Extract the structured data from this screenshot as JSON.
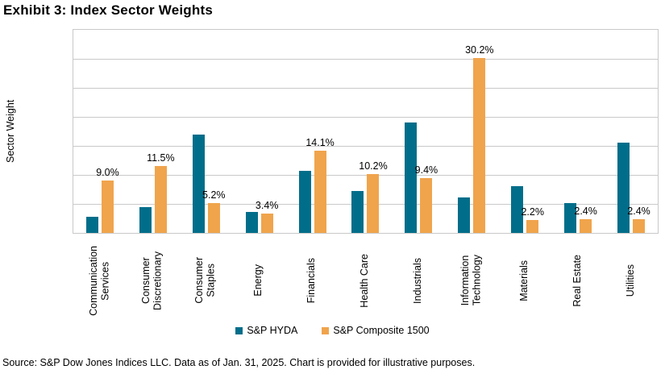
{
  "title": "Exhibit 3: Index Sector Weights",
  "source_note": "Source: S&P Dow Jones Indices LLC. Data as of Jan. 31, 2025. Chart is provided for illustrative purposes.",
  "chart_data": {
    "type": "bar",
    "title": "Exhibit 3: Index Sector Weights",
    "xlabel": "",
    "ylabel": "Sector Weight",
    "ylim": [
      0,
      35
    ],
    "ytick_step": 5,
    "ytick_labels": [
      "0%",
      "5%",
      "10%",
      "15%",
      "20%",
      "25%",
      "30%",
      "35%"
    ],
    "grid": true,
    "grid_color": "#c9c9c9",
    "legend_position": "bottom",
    "categories": [
      "Communication Services",
      "Consumer Discretionary",
      "Consumer Staples",
      "Energy",
      "Financials",
      "Health Care",
      "Industrials",
      "Information Technology",
      "Materials",
      "Real Estate",
      "Utilities"
    ],
    "categories_display": [
      "Communication\nServices",
      "Consumer\nDiscretionary",
      "Consumer\nStaples",
      "Energy",
      "Financials",
      "Health Care",
      "Industrials",
      "Information\nTechnology",
      "Materials",
      "Real Estate",
      "Utilities"
    ],
    "series": [
      {
        "name": "S&P HYDA",
        "color": "#006e8a",
        "labels_visible": false,
        "values": [
          2.8,
          4.5,
          17.0,
          3.6,
          10.7,
          7.2,
          19.0,
          6.1,
          8.0,
          5.1,
          15.6
        ]
      },
      {
        "name": "S&P Composite 1500",
        "color": "#f0a44c",
        "labels_visible": true,
        "values": [
          9.0,
          11.5,
          5.2,
          3.4,
          14.1,
          10.2,
          9.4,
          30.2,
          2.2,
          2.4,
          2.4
        ]
      }
    ],
    "data_labels": [
      "9.0%",
      "11.5%",
      "5.2%",
      "3.4%",
      "14.1%",
      "10.2%",
      "9.4%",
      "30.2%",
      "2.2%",
      "2.4%",
      "2.4%"
    ]
  }
}
